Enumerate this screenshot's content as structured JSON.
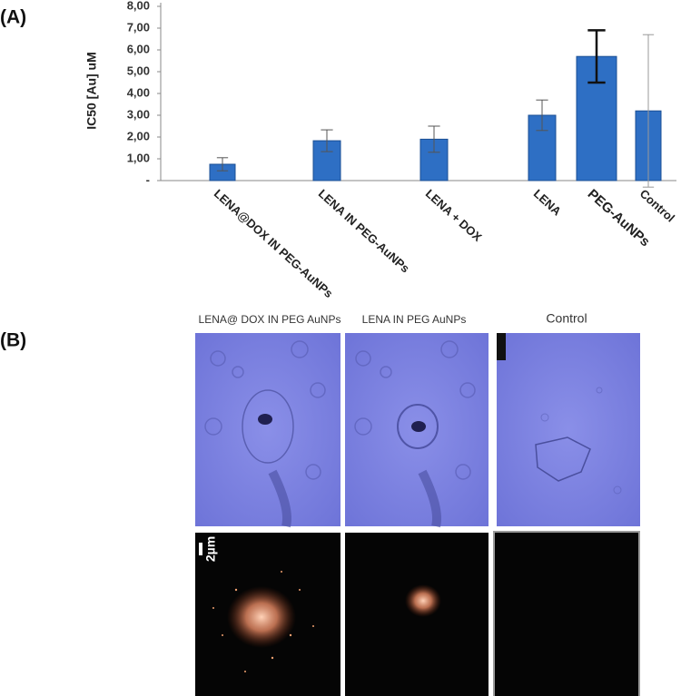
{
  "panel_labels": [
    "(A)",
    "(B)"
  ],
  "chart_data": {
    "type": "bar",
    "ylabel": "IC50 [Au] uM",
    "categories": [
      "LENA@DOX IN PEG-AuNPs",
      "LENA IN PEG-AuNPs",
      "LENA + DOX",
      "LENA",
      "PEG-AuNPs",
      "Control"
    ],
    "values": [
      0.75,
      1.83,
      1.9,
      3.0,
      5.7,
      3.2
    ],
    "errors": [
      0.3,
      0.5,
      0.6,
      0.7,
      1.2,
      3.5
    ],
    "color": "#2e6fc4",
    "ylim": [
      0,
      8
    ],
    "yticks": [
      {
        "value": 0,
        "label": "-"
      },
      {
        "value": 1,
        "label": "1,00"
      },
      {
        "value": 2,
        "label": "2,00"
      },
      {
        "value": 3,
        "label": "3,00"
      },
      {
        "value": 4,
        "label": "4,00"
      },
      {
        "value": 5,
        "label": "5,00"
      },
      {
        "value": 6,
        "label": "6,00"
      },
      {
        "value": 7,
        "label": "7,00"
      },
      {
        "value": 8,
        "label": "8,00"
      }
    ]
  },
  "images": {
    "captions": [
      "LENA@ DOX IN PEG AuNPs",
      "LENA IN PEG AuNPs",
      "Control"
    ],
    "scale_bar": "2µm"
  }
}
